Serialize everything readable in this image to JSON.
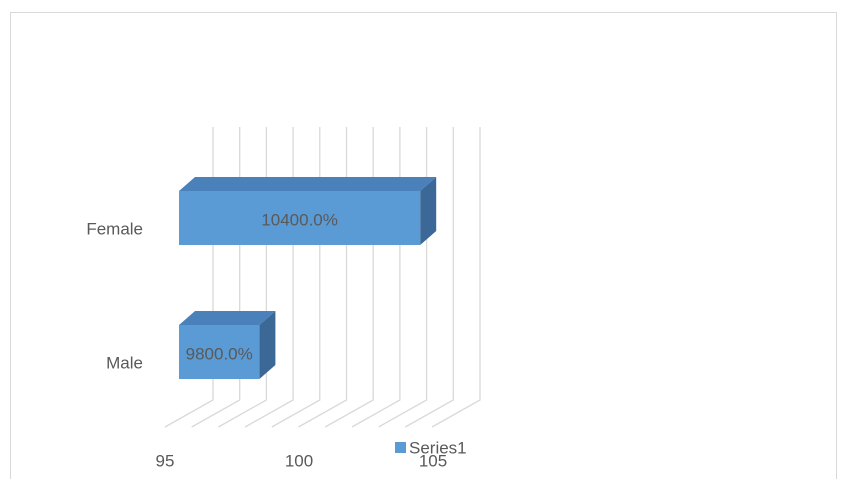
{
  "chart_data": {
    "type": "bar3d",
    "orientation": "horizontal",
    "categories": [
      "Male",
      "Female"
    ],
    "series": [
      {
        "name": "Series1",
        "color": "#5b9bd5",
        "values": [
          98,
          104
        ],
        "value_labels": [
          "9800.0%",
          "10400.0%"
        ]
      }
    ],
    "xlim": [
      95,
      105
    ],
    "xticks": [
      95,
      100,
      105
    ],
    "minor_xticks": [
      96,
      97,
      98,
      99,
      101,
      102,
      103,
      104
    ],
    "grid": true,
    "legend": "bottom"
  }
}
